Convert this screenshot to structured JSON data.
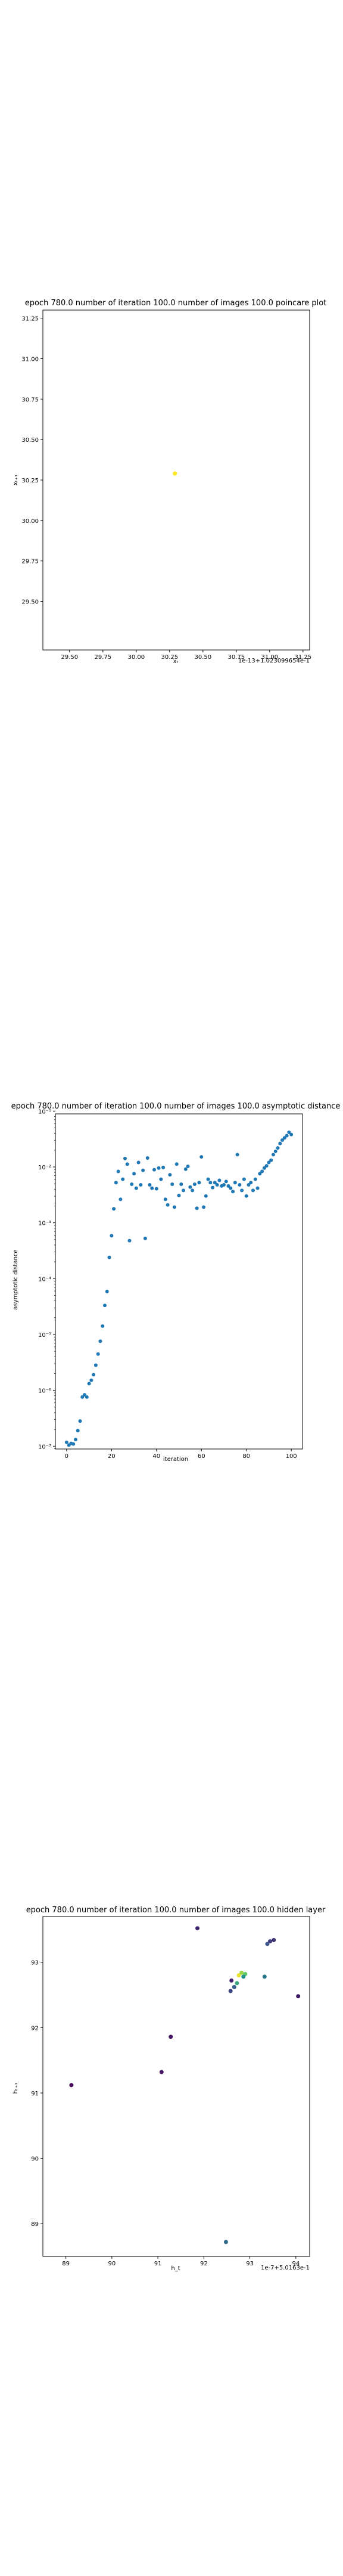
{
  "chart_data": [
    {
      "type": "scatter",
      "title": "epoch 780.0 number of iteration 100.0 number of images 100.0 poincare plot",
      "xlabel": "xₜ",
      "ylabel": "xₜ₊₁",
      "offset_text": "1e-13+1.023099654e-1",
      "xlim": [
        29.3,
        31.3
      ],
      "ylim": [
        29.2,
        31.3
      ],
      "xticks": [
        "29.50",
        "29.75",
        "30.00",
        "30.25",
        "30.50",
        "30.75",
        "31.00",
        "31.25"
      ],
      "yticks": [
        "29.50",
        "29.75",
        "30.00",
        "30.25",
        "30.50",
        "30.75",
        "31.00",
        "31.25"
      ],
      "points": [
        {
          "x": 30.29,
          "y": 30.29
        }
      ],
      "point_color": "#fde725"
    },
    {
      "type": "scatter",
      "title": "epoch 780.0 number of iteration 100.0  number of images 100.0 asymptotic distance",
      "xlabel": "iteration",
      "ylabel": "asymptotic distance",
      "y_scale": "log",
      "xlim": [
        -5,
        105
      ],
      "ylim_exp": [
        -7.05,
        -1.05
      ],
      "xticks": [
        "0",
        "20",
        "40",
        "60",
        "80",
        "100"
      ],
      "yticks": [
        "10⁻¹",
        "10⁻²",
        "10⁻³",
        "10⁻⁴",
        "10⁻⁵",
        "10⁻⁶",
        "10⁻⁷"
      ],
      "marker_color": "#1f77b4",
      "y_log10": [
        -6.93,
        -6.98,
        -6.95,
        -6.96,
        -6.88,
        -6.72,
        -6.55,
        -6.12,
        -6.08,
        -6.12,
        -5.88,
        -5.82,
        -5.72,
        -5.55,
        -5.35,
        -5.12,
        -4.85,
        -4.48,
        -4.23,
        -3.62,
        -3.23,
        -2.75,
        -2.28,
        -2.08,
        -2.58,
        -2.22,
        -1.85,
        -1.95,
        -3.32,
        -2.31,
        -2.12,
        -2.38,
        -1.92,
        -2.32,
        -2.06,
        -3.28,
        -1.84,
        -2.32,
        -2.38,
        -2.05,
        -2.39,
        -2.02,
        -2.22,
        -2.01,
        -2.58,
        -2.68,
        -2.14,
        -2.31,
        -2.72,
        -1.95,
        -2.51,
        -2.31,
        -2.42,
        -2.04,
        -1.99,
        -2.36,
        -2.42,
        -2.31,
        -2.74,
        -2.28,
        -1.82,
        -2.72,
        -2.52,
        -2.22,
        -2.28,
        -2.37,
        -2.28,
        -2.32,
        -2.24,
        -2.34,
        -2.32,
        -2.26,
        -2.34,
        -2.38,
        -2.44,
        -2.28,
        -1.78,
        -2.32,
        -2.42,
        -2.22,
        -2.52,
        -2.32,
        -2.28,
        -2.42,
        -2.22,
        -2.38,
        -2.12,
        -2.08,
        -2.02,
        -1.98,
        -1.92,
        -1.88,
        -1.78,
        -1.72,
        -1.66,
        -1.58,
        -1.52,
        -1.48,
        -1.44,
        -1.38,
        -1.42
      ]
    },
    {
      "type": "scatter",
      "title": "epoch 780.0 number of iteration 100.0  number of images 100.0 hidden layer",
      "xlabel": "h_t",
      "ylabel": "hₜ₊₁",
      "offset_text": "1e-7+5.0163e-1",
      "xlim": [
        88.5,
        94.3
      ],
      "ylim": [
        88.5,
        93.7
      ],
      "xticks": [
        "89",
        "90",
        "91",
        "92",
        "93",
        "94"
      ],
      "yticks": [
        "89",
        "90",
        "91",
        "92",
        "93"
      ],
      "points": [
        {
          "x": 89.12,
          "y": 91.12,
          "c": 0.02
        },
        {
          "x": 91.08,
          "y": 91.32,
          "c": 0.05
        },
        {
          "x": 91.28,
          "y": 91.86,
          "c": 0.06
        },
        {
          "x": 91.86,
          "y": 93.52,
          "c": 0.12
        },
        {
          "x": 92.48,
          "y": 88.72,
          "c": 0.35
        },
        {
          "x": 92.58,
          "y": 92.56,
          "c": 0.2
        },
        {
          "x": 92.6,
          "y": 92.72,
          "c": 0.1
        },
        {
          "x": 92.66,
          "y": 92.62,
          "c": 0.3
        },
        {
          "x": 92.72,
          "y": 92.68,
          "c": 0.6
        },
        {
          "x": 92.76,
          "y": 92.8,
          "c": 0.97
        },
        {
          "x": 92.82,
          "y": 92.84,
          "c": 0.85
        },
        {
          "x": 92.9,
          "y": 92.82,
          "c": 0.74
        },
        {
          "x": 92.86,
          "y": 92.78,
          "c": 0.5
        },
        {
          "x": 93.32,
          "y": 92.78,
          "c": 0.4
        },
        {
          "x": 93.38,
          "y": 93.28,
          "c": 0.25
        },
        {
          "x": 93.52,
          "y": 93.34,
          "c": 0.15
        },
        {
          "x": 93.44,
          "y": 93.32,
          "c": 0.18
        },
        {
          "x": 94.05,
          "y": 92.48,
          "c": 0.08
        }
      ]
    }
  ]
}
